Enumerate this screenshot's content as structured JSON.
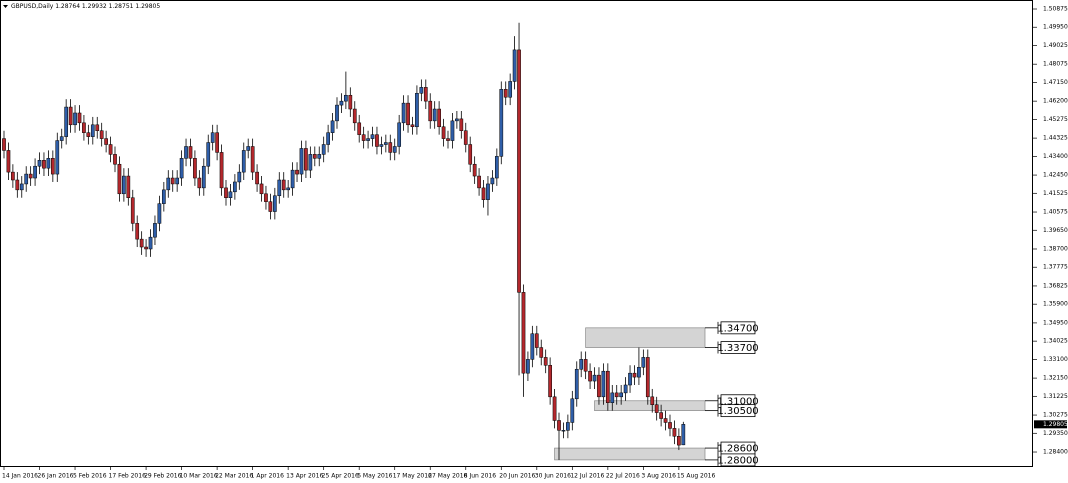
{
  "chart_data": {
    "type": "candlestick",
    "title": "GBPUSD,Daily  1.28764 1.29932 1.28751 1.29805",
    "up_color": "#2f5ea8",
    "down_color": "#b3282d",
    "zone_color": "#d4d4d4",
    "categories": [
      "14 Jan 2016",
      null,
      null,
      null,
      null,
      null,
      null,
      null,
      "26 Jan 2016",
      null,
      null,
      null,
      null,
      null,
      null,
      null,
      "5 Feb 2016",
      null,
      null,
      null,
      null,
      null,
      null,
      null,
      "17 Feb 2016",
      null,
      null,
      null,
      null,
      null,
      null,
      null,
      "29 Feb 2016",
      null,
      null,
      null,
      null,
      null,
      null,
      null,
      "10 Mar 2016",
      null,
      null,
      null,
      null,
      null,
      null,
      null,
      "22 Mar 2016",
      null,
      null,
      null,
      null,
      null,
      null,
      null,
      "1 Apr 2016",
      null,
      null,
      null,
      null,
      null,
      null,
      null,
      "13 Apr 2016",
      null,
      null,
      null,
      null,
      null,
      null,
      null,
      "25 Apr 2016",
      null,
      null,
      null,
      null,
      null,
      null,
      null,
      "5 May 2016",
      null,
      null,
      null,
      null,
      null,
      null,
      null,
      "17 May 2016",
      null,
      null,
      null,
      null,
      null,
      null,
      null,
      "27 May 2016",
      null,
      null,
      null,
      null,
      null,
      null,
      null,
      "8 Jun 2016",
      null,
      null,
      null,
      null,
      null,
      null,
      null,
      "20 Jun 2016",
      null,
      null,
      null,
      null,
      null,
      null,
      null,
      "30 Jun 2016",
      null,
      null,
      null,
      null,
      null,
      null,
      null,
      "12 Jul 2016",
      null,
      null,
      null,
      null,
      null,
      null,
      null,
      "22 Jul 2016",
      null,
      null,
      null,
      null,
      null,
      null,
      null,
      "3 Aug 2016",
      null,
      null,
      null,
      null,
      null,
      null,
      null,
      "15 Aug 2016",
      null
    ],
    "open": [
      1.443,
      1.437,
      1.426,
      1.422,
      1.417,
      1.42,
      1.425,
      1.423,
      1.429,
      1.432,
      1.428,
      1.433,
      1.425,
      1.442,
      1.444,
      1.459,
      1.45,
      1.456,
      1.451,
      1.446,
      1.444,
      1.45,
      1.447,
      1.443,
      1.44,
      1.435,
      1.43,
      1.415,
      1.424,
      1.413,
      1.4,
      1.392,
      1.388,
      1.387,
      1.393,
      1.4,
      1.41,
      1.417,
      1.423,
      1.42,
      1.423,
      1.433,
      1.439,
      1.433,
      1.423,
      1.418,
      1.429,
      1.441,
      1.446,
      1.436,
      1.418,
      1.413,
      1.416,
      1.421,
      1.426,
      1.437,
      1.439,
      1.426,
      1.42,
      1.415,
      1.411,
      1.406,
      1.414,
      1.422,
      1.417,
      1.418,
      1.427,
      1.425,
      1.438,
      1.427,
      1.435,
      1.433,
      1.435,
      1.44,
      1.446,
      1.452,
      1.46,
      1.462,
      1.465,
      1.458,
      1.451,
      1.445,
      1.442,
      1.443,
      1.445,
      1.439,
      1.44,
      1.441,
      1.436,
      1.439,
      1.451,
      1.461,
      1.45,
      1.449,
      1.466,
      1.469,
      1.462,
      1.452,
      1.458,
      1.449,
      1.443,
      1.442,
      1.452,
      1.453,
      1.447,
      1.44,
      1.43,
      1.424,
      1.418,
      1.412,
      1.42,
      1.423,
      1.434,
      1.468,
      1.464,
      1.472,
      1.488,
      1.365,
      1.324,
      1.331,
      1.344,
      1.337,
      1.332,
      1.328,
      1.312,
      1.3,
      1.295,
      1.295,
      1.299,
      1.311,
      1.326,
      1.331,
      1.325,
      1.32,
      1.323,
      1.312,
      1.325,
      1.309,
      1.314,
      1.312,
      1.314,
      1.318,
      1.324,
      1.322,
      1.327,
      1.332,
      1.312,
      1.308,
      1.304,
      1.301,
      1.299,
      1.296,
      1.292,
      1.28764
    ],
    "high": [
      1.447,
      1.441,
      1.43,
      1.426,
      1.424,
      1.429,
      1.429,
      1.433,
      1.436,
      1.436,
      1.437,
      1.437,
      1.446,
      1.448,
      1.463,
      1.463,
      1.46,
      1.46,
      1.455,
      1.45,
      1.454,
      1.454,
      1.451,
      1.447,
      1.444,
      1.439,
      1.434,
      1.428,
      1.428,
      1.417,
      1.404,
      1.396,
      1.392,
      1.397,
      1.404,
      1.414,
      1.421,
      1.427,
      1.427,
      1.427,
      1.437,
      1.443,
      1.443,
      1.437,
      1.427,
      1.433,
      1.445,
      1.45,
      1.45,
      1.44,
      1.422,
      1.42,
      1.425,
      1.43,
      1.441,
      1.443,
      1.443,
      1.43,
      1.424,
      1.419,
      1.415,
      1.418,
      1.426,
      1.426,
      1.422,
      1.431,
      1.431,
      1.442,
      1.442,
      1.439,
      1.439,
      1.439,
      1.444,
      1.45,
      1.456,
      1.464,
      1.466,
      1.477,
      1.469,
      1.462,
      1.455,
      1.449,
      1.447,
      1.449,
      1.449,
      1.444,
      1.445,
      1.445,
      1.443,
      1.455,
      1.465,
      1.465,
      1.454,
      1.47,
      1.473,
      1.473,
      1.466,
      1.462,
      1.462,
      1.453,
      1.447,
      1.456,
      1.457,
      1.457,
      1.451,
      1.444,
      1.434,
      1.428,
      1.422,
      1.424,
      1.427,
      1.438,
      1.472,
      1.472,
      1.476,
      1.495,
      1.5018,
      1.369,
      1.335,
      1.348,
      1.348,
      1.341,
      1.336,
      1.332,
      1.316,
      1.304,
      1.299,
      1.303,
      1.315,
      1.33,
      1.335,
      1.335,
      1.329,
      1.327,
      1.327,
      1.329,
      1.329,
      1.318,
      1.318,
      1.318,
      1.322,
      1.328,
      1.328,
      1.337,
      1.336,
      1.336,
      1.316,
      1.312,
      1.308,
      1.305,
      1.303,
      1.3,
      1.296,
      1.29932
    ],
    "low": [
      1.433,
      1.422,
      1.418,
      1.413,
      1.413,
      1.416,
      1.419,
      1.419,
      1.425,
      1.424,
      1.424,
      1.421,
      1.421,
      1.438,
      1.44,
      1.446,
      1.446,
      1.447,
      1.442,
      1.44,
      1.44,
      1.443,
      1.439,
      1.436,
      1.431,
      1.426,
      1.411,
      1.411,
      1.409,
      1.396,
      1.388,
      1.384,
      1.383,
      1.383,
      1.389,
      1.396,
      1.406,
      1.413,
      1.416,
      1.416,
      1.419,
      1.429,
      1.429,
      1.419,
      1.414,
      1.414,
      1.425,
      1.437,
      1.432,
      1.414,
      1.409,
      1.409,
      1.412,
      1.417,
      1.422,
      1.433,
      1.422,
      1.416,
      1.411,
      1.407,
      1.402,
      1.402,
      1.41,
      1.413,
      1.413,
      1.414,
      1.421,
      1.421,
      1.423,
      1.423,
      1.429,
      1.429,
      1.431,
      1.436,
      1.442,
      1.448,
      1.456,
      1.458,
      1.454,
      1.447,
      1.441,
      1.438,
      1.438,
      1.439,
      1.435,
      1.435,
      1.436,
      1.432,
      1.432,
      1.435,
      1.447,
      1.446,
      1.445,
      1.445,
      1.462,
      1.458,
      1.448,
      1.448,
      1.445,
      1.439,
      1.438,
      1.438,
      1.448,
      1.443,
      1.436,
      1.426,
      1.42,
      1.414,
      1.408,
      1.404,
      1.416,
      1.419,
      1.43,
      1.46,
      1.46,
      1.468,
      1.3229,
      1.312,
      1.32,
      1.327,
      1.333,
      1.328,
      1.324,
      1.308,
      1.296,
      1.28,
      1.291,
      1.291,
      1.295,
      1.307,
      1.322,
      1.321,
      1.316,
      1.316,
      1.308,
      1.308,
      1.305,
      1.305,
      1.308,
      1.308,
      1.31,
      1.314,
      1.318,
      1.318,
      1.323,
      1.308,
      1.304,
      1.3,
      1.297,
      1.295,
      1.292,
      1.288,
      1.285,
      1.28751
    ],
    "close": [
      1.437,
      1.426,
      1.422,
      1.417,
      1.42,
      1.425,
      1.423,
      1.429,
      1.432,
      1.428,
      1.433,
      1.425,
      1.442,
      1.444,
      1.459,
      1.45,
      1.456,
      1.451,
      1.446,
      1.444,
      1.45,
      1.447,
      1.443,
      1.44,
      1.435,
      1.43,
      1.415,
      1.424,
      1.413,
      1.4,
      1.392,
      1.388,
      1.387,
      1.393,
      1.4,
      1.41,
      1.417,
      1.423,
      1.42,
      1.423,
      1.433,
      1.439,
      1.433,
      1.423,
      1.418,
      1.429,
      1.441,
      1.446,
      1.436,
      1.418,
      1.413,
      1.416,
      1.421,
      1.426,
      1.437,
      1.439,
      1.426,
      1.42,
      1.415,
      1.411,
      1.406,
      1.414,
      1.422,
      1.417,
      1.418,
      1.427,
      1.425,
      1.438,
      1.427,
      1.435,
      1.433,
      1.435,
      1.44,
      1.446,
      1.452,
      1.46,
      1.462,
      1.465,
      1.458,
      1.451,
      1.445,
      1.442,
      1.443,
      1.445,
      1.439,
      1.44,
      1.441,
      1.436,
      1.439,
      1.451,
      1.461,
      1.45,
      1.449,
      1.466,
      1.469,
      1.462,
      1.452,
      1.458,
      1.449,
      1.443,
      1.442,
      1.452,
      1.453,
      1.447,
      1.44,
      1.43,
      1.424,
      1.418,
      1.412,
      1.42,
      1.423,
      1.434,
      1.468,
      1.464,
      1.472,
      1.488,
      1.365,
      1.324,
      1.331,
      1.344,
      1.337,
      1.332,
      1.328,
      1.312,
      1.3,
      1.295,
      1.295,
      1.299,
      1.311,
      1.326,
      1.331,
      1.325,
      1.32,
      1.323,
      1.312,
      1.325,
      1.309,
      1.314,
      1.312,
      1.314,
      1.318,
      1.324,
      1.322,
      1.327,
      1.332,
      1.312,
      1.308,
      1.304,
      1.301,
      1.299,
      1.296,
      1.292,
      1.2875,
      1.29805
    ],
    "ylim": [
      1.2764,
      1.5123
    ],
    "yticks": [
      1.50875,
      {
        "value": 1.4995,
        "label": "1.49950"
      },
      1.49025,
      1.48075,
      {
        "value": 1.4715,
        "label": "1.47150"
      },
      {
        "value": 1.462,
        "label": "1.46200"
      },
      1.45275,
      1.44325,
      {
        "value": 1.434,
        "label": "1.43400"
      },
      {
        "value": 1.4245,
        "label": "1.42450"
      },
      1.41525,
      1.40575,
      {
        "value": 1.3965,
        "label": "1.39650"
      },
      {
        "value": 1.387,
        "label": "1.38700"
      },
      1.37775,
      1.36825,
      {
        "value": 1.359,
        "label": "1.35900"
      },
      {
        "value": 1.3495,
        "label": "1.34950"
      },
      1.34025,
      {
        "value": 1.331,
        "label": "1.33100"
      },
      {
        "value": 1.3215,
        "label": "1.32150"
      },
      1.31225,
      1.30275,
      {
        "value": 1.2935,
        "label": "1.29350"
      },
      {
        "value": 1.284,
        "label": "1.28400"
      }
    ],
    "last_price": 1.29805,
    "zones": [
      {
        "start": 131,
        "top": {
          "value": 1.347,
          "label": "1.34700"
        },
        "bottom": {
          "value": 1.337,
          "label": "1.33700"
        }
      },
      {
        "start": 133,
        "top": {
          "value": 1.31,
          "label": "1.31000"
        },
        "bottom": {
          "value": 1.305,
          "label": "1.30500"
        }
      },
      {
        "start": 124,
        "top": {
          "value": 1.286,
          "label": "1.28600"
        },
        "bottom": {
          "value": 1.28,
          "label": "1.28000"
        }
      }
    ]
  }
}
